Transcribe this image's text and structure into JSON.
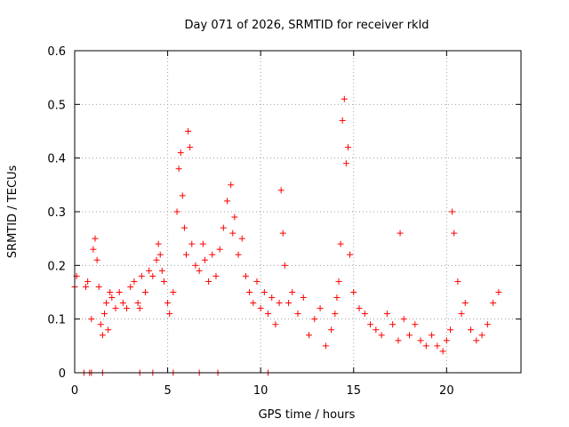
{
  "chart_data": {
    "type": "scatter",
    "title": "Day 071 of 2026, SRMTID for receiver rkld",
    "xlabel": "GPS time / hours",
    "ylabel": "SRMTID / TECUs",
    "xlim": [
      0,
      24
    ],
    "ylim": [
      0,
      0.6
    ],
    "xticks": [
      0,
      5,
      10,
      15,
      20
    ],
    "yticks": [
      0,
      0.1,
      0.2,
      0.3,
      0.4,
      0.5,
      0.6
    ],
    "xtick_labels": [
      "0",
      "5",
      "10",
      "15",
      "20"
    ],
    "ytick_labels": [
      "0",
      "0.1",
      "0.2",
      "0.3",
      "0.4",
      "0.5",
      "0.6"
    ],
    "grid": true,
    "marker": "+",
    "color": "#ff0000",
    "series": [
      {
        "name": "SRMTID",
        "x": [
          0.0,
          0.1,
          0.6,
          0.7,
          0.9,
          1.0,
          1.1,
          1.2,
          1.3,
          1.4,
          1.5,
          1.6,
          1.7,
          1.8,
          1.9,
          2.0,
          2.2,
          2.4,
          2.6,
          2.8,
          3.0,
          3.2,
          3.4,
          3.5,
          3.6,
          3.8,
          4.0,
          4.2,
          4.4,
          4.5,
          4.6,
          4.7,
          4.8,
          5.0,
          5.1,
          5.3,
          5.5,
          5.6,
          5.7,
          5.8,
          5.9,
          6.0,
          6.1,
          6.2,
          6.3,
          6.5,
          6.7,
          6.9,
          7.0,
          7.2,
          7.4,
          7.6,
          7.8,
          8.0,
          8.2,
          8.4,
          8.5,
          8.6,
          8.8,
          9.0,
          9.2,
          9.4,
          9.6,
          9.8,
          10.0,
          10.2,
          10.4,
          10.6,
          10.8,
          11.0,
          11.1,
          11.2,
          11.3,
          11.5,
          11.7,
          12.0,
          12.3,
          12.6,
          12.9,
          13.2,
          13.5,
          13.8,
          14.0,
          14.1,
          14.2,
          14.3,
          14.4,
          14.5,
          14.6,
          14.7,
          14.8,
          15.0,
          15.3,
          15.6,
          15.9,
          16.2,
          16.5,
          16.8,
          17.1,
          17.4,
          17.5,
          17.7,
          18.0,
          18.3,
          18.6,
          18.9,
          19.2,
          19.5,
          19.8,
          20.0,
          20.2,
          20.3,
          20.4,
          20.6,
          20.8,
          21.0,
          21.3,
          21.6,
          21.9,
          22.2,
          22.5,
          22.8,
          0.5,
          0.8,
          0.9,
          1.5,
          3.5,
          4.2,
          5.3,
          6.7,
          7.7,
          10.4
        ],
        "y": [
          0.16,
          0.18,
          0.16,
          0.17,
          0.1,
          0.23,
          0.25,
          0.21,
          0.16,
          0.09,
          0.07,
          0.11,
          0.13,
          0.08,
          0.15,
          0.14,
          0.12,
          0.15,
          0.13,
          0.12,
          0.16,
          0.17,
          0.13,
          0.12,
          0.18,
          0.15,
          0.19,
          0.18,
          0.21,
          0.24,
          0.22,
          0.19,
          0.17,
          0.13,
          0.11,
          0.15,
          0.3,
          0.38,
          0.41,
          0.33,
          0.27,
          0.22,
          0.45,
          0.42,
          0.24,
          0.2,
          0.19,
          0.24,
          0.21,
          0.17,
          0.22,
          0.18,
          0.23,
          0.27,
          0.32,
          0.35,
          0.26,
          0.29,
          0.22,
          0.25,
          0.18,
          0.15,
          0.13,
          0.17,
          0.12,
          0.15,
          0.11,
          0.14,
          0.09,
          0.13,
          0.34,
          0.26,
          0.2,
          0.13,
          0.15,
          0.11,
          0.14,
          0.07,
          0.1,
          0.12,
          0.05,
          0.08,
          0.11,
          0.14,
          0.17,
          0.24,
          0.47,
          0.51,
          0.39,
          0.42,
          0.22,
          0.15,
          0.12,
          0.11,
          0.09,
          0.08,
          0.07,
          0.11,
          0.09,
          0.06,
          0.26,
          0.1,
          0.07,
          0.09,
          0.06,
          0.05,
          0.07,
          0.05,
          0.04,
          0.06,
          0.08,
          0.3,
          0.26,
          0.17,
          0.11,
          0.13,
          0.08,
          0.06,
          0.07,
          0.09,
          0.13,
          0.15,
          0.0,
          0.0,
          0.0,
          0.0,
          0.0,
          0.0,
          0.0,
          0.0,
          0.0,
          0.0
        ]
      }
    ]
  }
}
